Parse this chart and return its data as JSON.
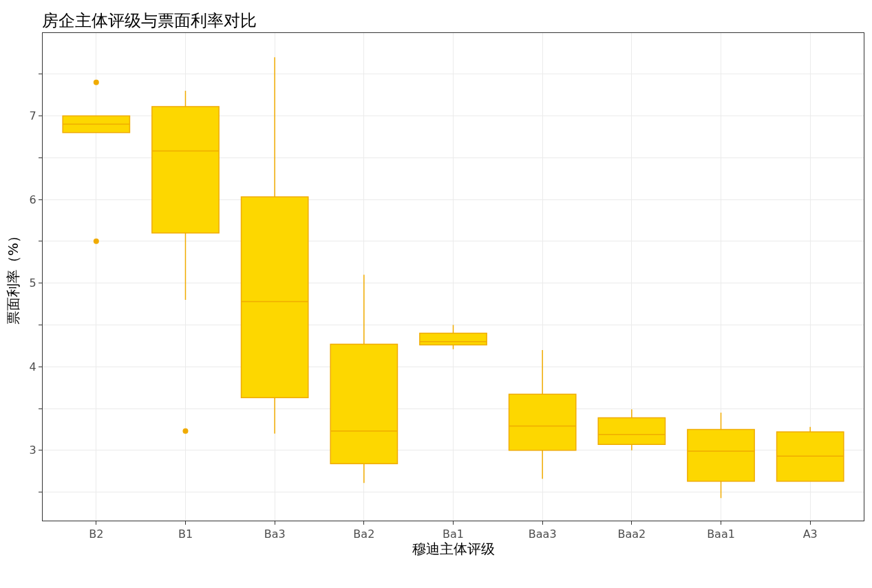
{
  "chart_data": {
    "type": "box",
    "title": "房企主体评级与票面利率对比",
    "xlabel": "穆迪主体评级",
    "ylabel": "票面利率（%）",
    "categories": [
      "B2",
      "B1",
      "Ba3",
      "Ba2",
      "Ba1",
      "Baa3",
      "Baa2",
      "Baa1",
      "A3"
    ],
    "series": [
      {
        "color": "#f0ab00",
        "boxes": [
          {
            "low": 6.8,
            "q1": 6.8,
            "median": 6.9,
            "q3": 7.0,
            "high": 7.0,
            "outliers": [
              7.4,
              5.5
            ]
          },
          {
            "low": 4.8,
            "q1": 5.6,
            "median": 6.58,
            "q3": 7.11,
            "high": 7.3,
            "outliers": [
              3.23
            ]
          },
          {
            "low": 3.2,
            "q1": 3.63,
            "median": 4.78,
            "q3": 6.03,
            "high": 7.7
          },
          {
            "low": 2.61,
            "q1": 2.84,
            "median": 3.23,
            "q3": 4.27,
            "high": 5.1
          },
          {
            "low": 4.21,
            "q1": 4.26,
            "median": 4.3,
            "q3": 4.4,
            "high": 4.5
          },
          {
            "low": 2.66,
            "q1": 3.0,
            "median": 3.29,
            "q3": 3.67,
            "high": 4.2
          },
          {
            "low": 3.0,
            "q1": 3.07,
            "median": 3.19,
            "q3": 3.39,
            "high": 3.49
          },
          {
            "low": 2.43,
            "q1": 2.63,
            "median": 2.99,
            "q3": 3.25,
            "high": 3.45
          },
          {
            "low": 2.63,
            "q1": 2.63,
            "median": 2.93,
            "q3": 3.22,
            "high": 3.28
          }
        ]
      }
    ],
    "ylim": [
      2.16,
      7.99
    ],
    "yticks": [
      {
        "value": 2.5,
        "label": null
      },
      3,
      {
        "value": 3.5,
        "label": null
      },
      4,
      {
        "value": 4.5,
        "label": null
      },
      5,
      {
        "value": 5.5,
        "label": null
      },
      6,
      {
        "value": 6.5,
        "label": null
      },
      7,
      {
        "value": 7.5,
        "label": null
      }
    ],
    "grid": true
  }
}
